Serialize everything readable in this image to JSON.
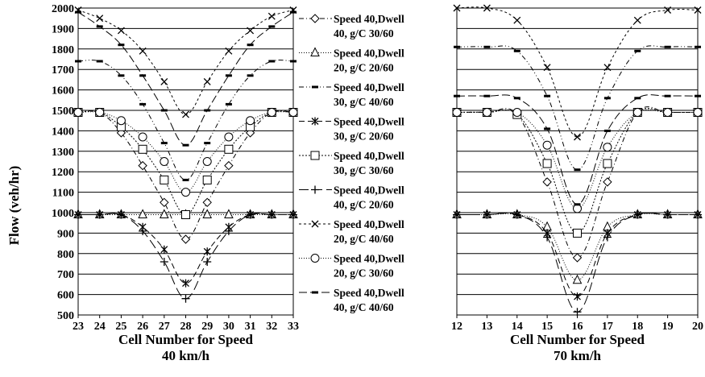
{
  "ylabel": "Flow (veh/hr)",
  "legend": [
    {
      "label": "Speed 40,Dwell 40, g/C  30/60",
      "line1": "Speed 40,Dwell",
      "line2": "40, g/C  30/60",
      "marker": "diamond",
      "dash": "6 3 1 3",
      "color": "#000000"
    },
    {
      "label": "Speed 40,Dwell 20, g/C 20/60",
      "line1": "Speed 40,Dwell",
      "line2": "20, g/C 20/60",
      "marker": "triangle",
      "dash": "1 2",
      "color": "#000000"
    },
    {
      "label": "Speed 40,Dwell 30, g/C 40/60",
      "line1": "Speed 40,Dwell",
      "line2": "30, g/C 40/60",
      "marker": "dash",
      "dash": "6 3 1 3 1 3",
      "color": "#000000"
    },
    {
      "label": "Speed 40,Dwell 30, g/C 20/60",
      "line1": "Speed 40,Dwell",
      "line2": "30, g/C 20/60",
      "marker": "asterisk",
      "dash": "7 4",
      "color": "#000000"
    },
    {
      "label": "Speed 40,Dwell 30, g/C 30/60",
      "line1": "Speed 40,Dwell",
      "line2": "30, g/C 30/60",
      "marker": "square",
      "dash": "2 2",
      "color": "#000000"
    },
    {
      "label": "Speed 40,Dwell 40, g/C 20/60",
      "line1": "Speed 40,Dwell",
      "line2": "40, g/C 20/60",
      "marker": "plus",
      "dash": "12 5",
      "color": "#000000"
    },
    {
      "label": "Speed 40,Dwell 20, g/C 40/60",
      "line1": "Speed 40,Dwell",
      "line2": "20, g/C 40/60",
      "marker": "cross",
      "dash": "3 3",
      "color": "#000000"
    },
    {
      "label": "Speed 40,Dwell 20, g/C  30/60",
      "line1": "Speed 40,Dwell",
      "line2": "20, g/C  30/60",
      "marker": "circle",
      "dash": "1 2",
      "color": "#000000"
    },
    {
      "label": "Speed 40,Dwell 40, g/C 40/60",
      "line1": "Speed 40,Dwell",
      "line2": "40, g/C 40/60",
      "marker": "dash",
      "dash": "10 4",
      "color": "#000000"
    }
  ],
  "chart_data": [
    {
      "type": "line",
      "xlabel": "Cell Number for Speed",
      "xlabel2": "40 km/h",
      "ylabel": "Flow (veh/hr)",
      "ylim": [
        500,
        2000
      ],
      "xlim": [
        23,
        33
      ],
      "yticks": [
        500,
        600,
        700,
        800,
        900,
        1000,
        1100,
        1200,
        1300,
        1400,
        1500,
        1600,
        1700,
        1800,
        1900,
        2000
      ],
      "x": [
        23,
        24,
        25,
        26,
        27,
        28,
        29,
        30,
        31,
        32,
        33
      ],
      "grid": "horizontal",
      "series": [
        {
          "marker": "diamond",
          "values": [
            1490,
            1490,
            1390,
            1230,
            1050,
            870,
            1050,
            1230,
            1390,
            1490,
            1490
          ]
        },
        {
          "marker": "triangle",
          "values": [
            990,
            990,
            990,
            990,
            990,
            990,
            990,
            990,
            990,
            990,
            990
          ]
        },
        {
          "marker": "dash",
          "values": [
            1740,
            1740,
            1670,
            1530,
            1340,
            1160,
            1340,
            1530,
            1670,
            1740,
            1740
          ]
        },
        {
          "marker": "asterisk",
          "values": [
            990,
            990,
            990,
            930,
            820,
            655,
            810,
            930,
            990,
            990,
            990
          ]
        },
        {
          "marker": "square",
          "values": [
            1490,
            1490,
            1420,
            1310,
            1160,
            990,
            1160,
            1310,
            1420,
            1490,
            1490
          ]
        },
        {
          "marker": "plus",
          "values": [
            990,
            990,
            990,
            910,
            760,
            580,
            760,
            910,
            990,
            990,
            990
          ]
        },
        {
          "marker": "cross",
          "values": [
            1990,
            1950,
            1890,
            1790,
            1640,
            1480,
            1640,
            1790,
            1890,
            1960,
            1990
          ]
        },
        {
          "marker": "circle",
          "values": [
            1490,
            1490,
            1450,
            1370,
            1250,
            1100,
            1250,
            1370,
            1450,
            1490,
            1490
          ]
        },
        {
          "marker": "dash",
          "values": [
            1980,
            1910,
            1820,
            1670,
            1500,
            1330,
            1500,
            1670,
            1820,
            1910,
            1980
          ]
        }
      ]
    },
    {
      "type": "line",
      "xlabel": "Cell Number for Speed",
      "xlabel2": "70 km/h",
      "ylim": [
        500,
        2000
      ],
      "xlim": [
        12,
        20
      ],
      "x": [
        12,
        13,
        14,
        15,
        16,
        17,
        18,
        19,
        20
      ],
      "grid": "horizontal",
      "series": [
        {
          "marker": "diamond",
          "values": [
            1490,
            1490,
            1480,
            1150,
            780,
            1150,
            1490,
            1490,
            1490
          ]
        },
        {
          "marker": "triangle",
          "values": [
            990,
            990,
            990,
            930,
            670,
            930,
            990,
            990,
            990
          ]
        },
        {
          "marker": "dash",
          "values": [
            1810,
            1810,
            1790,
            1570,
            1210,
            1560,
            1790,
            1810,
            1810
          ]
        },
        {
          "marker": "asterisk",
          "values": [
            990,
            990,
            990,
            900,
            590,
            900,
            990,
            990,
            990
          ]
        },
        {
          "marker": "square",
          "values": [
            1490,
            1490,
            1480,
            1240,
            900,
            1240,
            1490,
            1490,
            1490
          ]
        },
        {
          "marker": "plus",
          "values": [
            990,
            990,
            990,
            880,
            515,
            880,
            990,
            990,
            990
          ]
        },
        {
          "marker": "cross",
          "values": [
            2000,
            2000,
            1940,
            1710,
            1370,
            1710,
            1940,
            1990,
            1990
          ]
        },
        {
          "marker": "circle",
          "values": [
            1490,
            1490,
            1490,
            1330,
            1020,
            1320,
            1490,
            1490,
            1490
          ]
        },
        {
          "marker": "dash",
          "values": [
            1570,
            1570,
            1560,
            1410,
            1040,
            1400,
            1560,
            1570,
            1570
          ]
        }
      ]
    }
  ]
}
